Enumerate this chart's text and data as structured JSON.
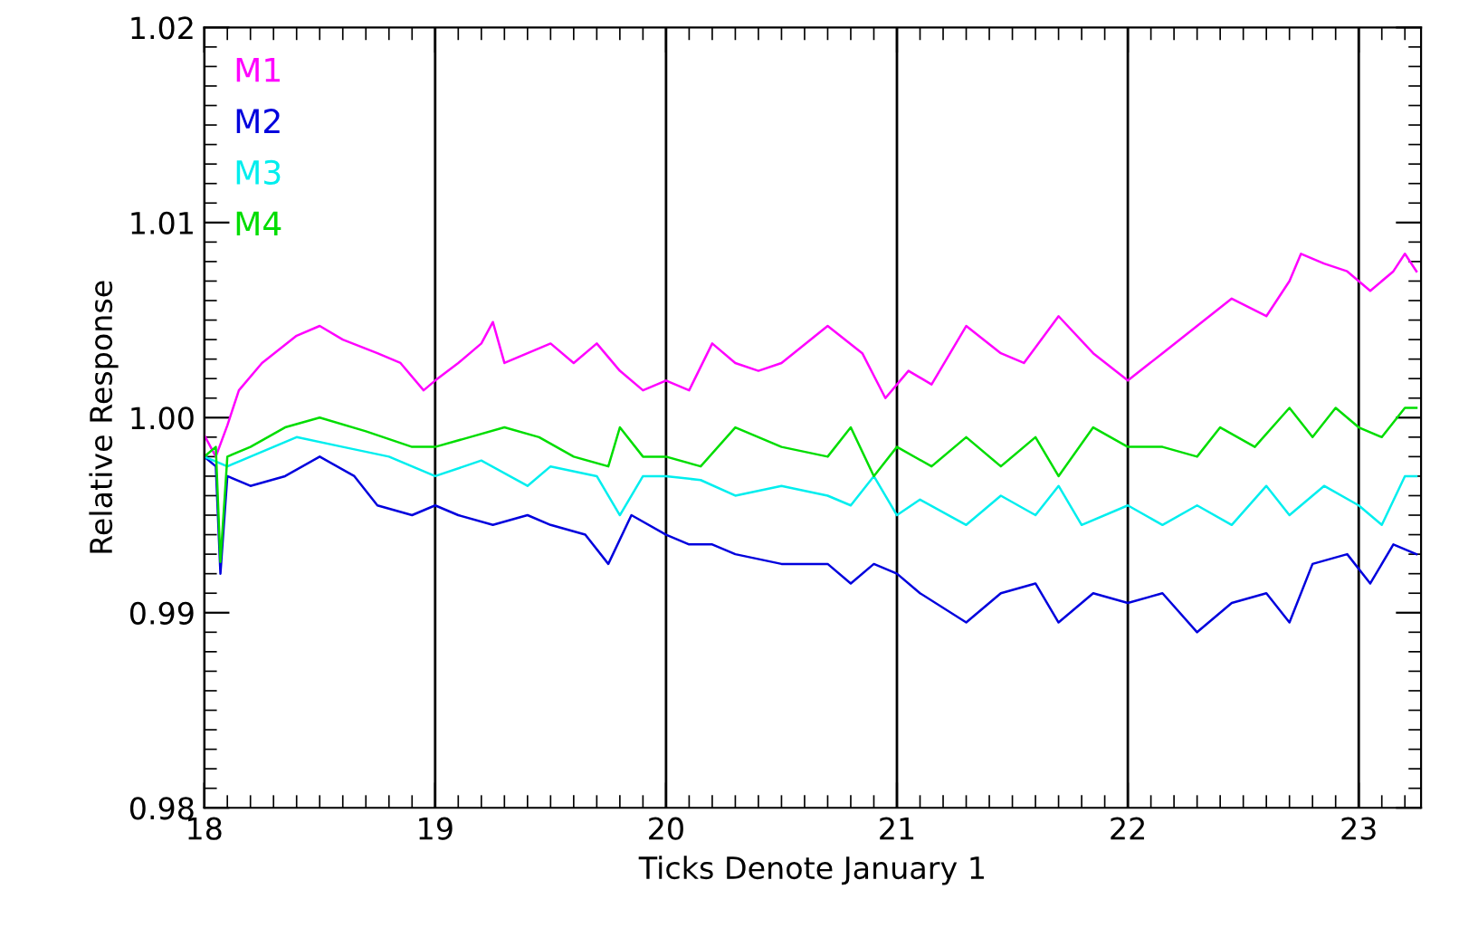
{
  "chart_data": {
    "type": "line",
    "xlabel": "Ticks Denote January 1",
    "ylabel": "Relative Response",
    "xlim": [
      18,
      23.27
    ],
    "xticks": [
      18,
      19,
      20,
      21,
      22,
      23
    ],
    "ylim": [
      0.98,
      1.02
    ],
    "yticks": [
      {
        "value": 0.98,
        "label": "0.98"
      },
      {
        "value": 0.99,
        "label": "0.99"
      },
      {
        "value": 1.0,
        "label": "1.00"
      },
      {
        "value": 1.01,
        "label": "1.01"
      },
      {
        "value": 1.02,
        "label": "1.02"
      }
    ],
    "grid": "x",
    "legend": "top left",
    "marker": "none",
    "line_style": "solid",
    "series": [
      {
        "name": "M1",
        "color": "#ff00ff",
        "x": [
          18.0,
          18.05,
          18.1,
          18.15,
          18.25,
          18.4,
          18.5,
          18.6,
          18.75,
          18.85,
          18.95,
          19.0,
          19.1,
          19.2,
          19.25,
          19.3,
          19.4,
          19.5,
          19.6,
          19.7,
          19.8,
          19.9,
          20.0,
          20.1,
          20.2,
          20.3,
          20.4,
          20.5,
          20.7,
          20.85,
          20.95,
          21.05,
          21.15,
          21.3,
          21.45,
          21.55,
          21.7,
          21.85,
          22.0,
          22.15,
          22.3,
          22.45,
          22.6,
          22.7,
          22.75,
          22.85,
          22.95,
          23.05,
          23.15,
          23.2,
          23.25
        ],
        "values": [
          0.9991,
          0.998,
          0.9996,
          1.0014,
          1.0028,
          1.0042,
          1.0047,
          1.004,
          1.0033,
          1.0028,
          1.0014,
          1.0019,
          1.0028,
          1.0038,
          1.0049,
          1.0028,
          1.0033,
          1.0038,
          1.0028,
          1.0038,
          1.0024,
          1.0014,
          1.0019,
          1.0014,
          1.0038,
          1.0028,
          1.0024,
          1.0028,
          1.0047,
          1.0033,
          1.001,
          1.0024,
          1.0017,
          1.0047,
          1.0033,
          1.0028,
          1.0052,
          1.0033,
          1.0019,
          1.0033,
          1.0047,
          1.0061,
          1.0052,
          1.007,
          1.0084,
          1.0079,
          1.0075,
          1.0065,
          1.0075,
          1.0084,
          1.0075
        ]
      },
      {
        "name": "M2",
        "color": "#0000dd",
        "x": [
          18.0,
          18.05,
          18.07,
          18.1,
          18.2,
          18.35,
          18.5,
          18.65,
          18.75,
          18.9,
          19.0,
          19.1,
          19.25,
          19.4,
          19.5,
          19.65,
          19.75,
          19.85,
          20.0,
          20.1,
          20.2,
          20.3,
          20.5,
          20.7,
          20.8,
          20.9,
          21.0,
          21.1,
          21.3,
          21.45,
          21.6,
          21.7,
          21.85,
          22.0,
          22.15,
          22.3,
          22.45,
          22.6,
          22.7,
          22.8,
          22.95,
          23.05,
          23.15,
          23.25
        ],
        "values": [
          0.998,
          0.9975,
          0.992,
          0.997,
          0.9965,
          0.997,
          0.998,
          0.997,
          0.9955,
          0.995,
          0.9955,
          0.995,
          0.9945,
          0.995,
          0.9945,
          0.994,
          0.9925,
          0.995,
          0.994,
          0.9935,
          0.9935,
          0.993,
          0.9925,
          0.9925,
          0.9915,
          0.9925,
          0.992,
          0.991,
          0.9895,
          0.991,
          0.9915,
          0.9895,
          0.991,
          0.9905,
          0.991,
          0.989,
          0.9905,
          0.991,
          0.9895,
          0.9925,
          0.993,
          0.9915,
          0.9935,
          0.993
        ]
      },
      {
        "name": "M3",
        "color": "#00eeee",
        "x": [
          18.0,
          18.1,
          18.2,
          18.4,
          18.6,
          18.8,
          19.0,
          19.2,
          19.4,
          19.5,
          19.7,
          19.8,
          19.9,
          20.0,
          20.15,
          20.3,
          20.5,
          20.7,
          20.8,
          20.9,
          21.0,
          21.1,
          21.3,
          21.45,
          21.6,
          21.7,
          21.8,
          22.0,
          22.15,
          22.3,
          22.45,
          22.6,
          22.7,
          22.85,
          23.0,
          23.1,
          23.2,
          23.25
        ],
        "values": [
          0.998,
          0.9975,
          0.998,
          0.999,
          0.9985,
          0.998,
          0.997,
          0.9978,
          0.9965,
          0.9975,
          0.997,
          0.995,
          0.997,
          0.997,
          0.9968,
          0.996,
          0.9965,
          0.996,
          0.9955,
          0.997,
          0.995,
          0.9958,
          0.9945,
          0.996,
          0.995,
          0.9965,
          0.9945,
          0.9955,
          0.9945,
          0.9955,
          0.9945,
          0.9965,
          0.995,
          0.9965,
          0.9955,
          0.9945,
          0.997,
          0.997
        ]
      },
      {
        "name": "M4",
        "color": "#00dd00",
        "x": [
          18.0,
          18.05,
          18.07,
          18.1,
          18.2,
          18.35,
          18.5,
          18.7,
          18.9,
          19.0,
          19.15,
          19.3,
          19.45,
          19.6,
          19.75,
          19.8,
          19.9,
          20.0,
          20.15,
          20.3,
          20.5,
          20.7,
          20.8,
          20.9,
          21.0,
          21.15,
          21.3,
          21.45,
          21.6,
          21.7,
          21.85,
          22.0,
          22.15,
          22.3,
          22.4,
          22.55,
          22.7,
          22.8,
          22.9,
          23.0,
          23.1,
          23.2,
          23.25
        ],
        "values": [
          0.998,
          0.9985,
          0.9926,
          0.998,
          0.9985,
          0.9995,
          1.0,
          0.9993,
          0.9985,
          0.9985,
          0.999,
          0.9995,
          0.999,
          0.998,
          0.9975,
          0.9995,
          0.998,
          0.998,
          0.9975,
          0.9995,
          0.9985,
          0.998,
          0.9995,
          0.997,
          0.9985,
          0.9975,
          0.999,
          0.9975,
          0.999,
          0.997,
          0.9995,
          0.9985,
          0.9985,
          0.998,
          0.9995,
          0.9985,
          1.0005,
          0.999,
          1.0005,
          0.9995,
          0.999,
          1.0005,
          1.0005
        ]
      }
    ]
  }
}
